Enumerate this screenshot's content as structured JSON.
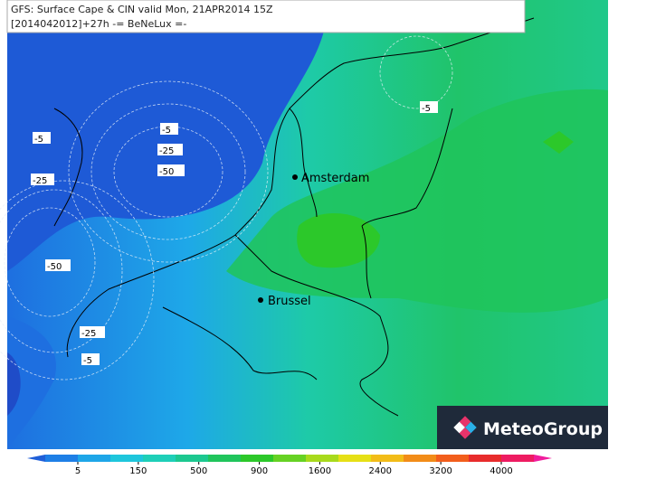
{
  "header": {
    "line1": "GFS: Surface Cape & CIN valid Mon, 21APR2014 15Z",
    "line2": "[2014042012]+27h  -= BeNeLux =-"
  },
  "contours": [
    -5,
    -25,
    -50,
    -5,
    -25,
    -50,
    -25,
    -5,
    -5
  ],
  "cities": [
    "Amsterdam",
    "Brussel"
  ],
  "logo": "MeteoGroup",
  "legend": {
    "ticks": [
      5,
      150,
      500,
      900,
      1600,
      2400,
      3200,
      4000
    ],
    "colors": [
      "#1f5fd8",
      "#1e7fe6",
      "#1ea6e8",
      "#1ec6dc",
      "#1ecfb8",
      "#1cc890",
      "#20c55c",
      "#2cc82a",
      "#66d224",
      "#a8da1c",
      "#e6e016",
      "#f2bc18",
      "#f28c18",
      "#f25e1c",
      "#e82c2c",
      "#ee1c62",
      "#f01c9c"
    ]
  }
}
